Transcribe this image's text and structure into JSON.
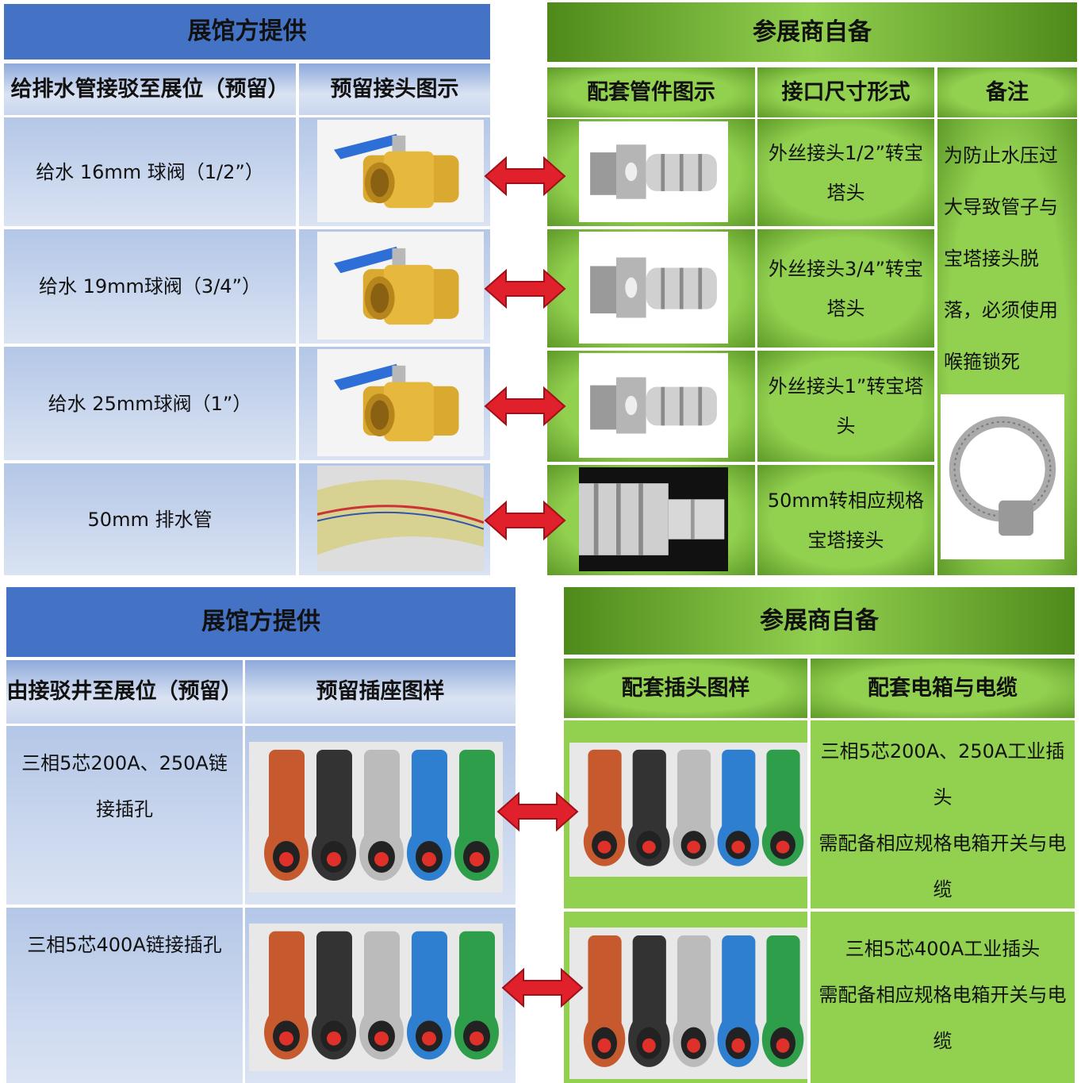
{
  "water": {
    "left_header": "展馆方提供",
    "left_columns": [
      "给排水管接驳至展位（预留）",
      "预留接头图示"
    ],
    "left_rows": [
      "给水  16mm 球阀（1/2”）",
      "给水  19mm球阀（3/4”）",
      "给水  25mm球阀（1”）",
      "50mm 排水管"
    ],
    "right_header": "参展商自备",
    "right_columns": [
      "配套管件图示",
      "接口尺寸形式",
      "备注"
    ],
    "right_rows": [
      "外丝接头1/2”转宝塔头",
      "外丝接头3/4”转宝塔头",
      "外丝接头1”转宝塔头",
      "50mm转相应规格宝塔接头"
    ],
    "note": "为防止水压过大导致管子与宝塔接头脱落，必须使用喉箍锁死"
  },
  "power": {
    "left_header": "展馆方提供",
    "left_columns": [
      "由接驳井至展位（预留）",
      "预留插座图样"
    ],
    "left_rows": [
      "三相5芯200A、250A链接插孔",
      "三相5芯400A链接插孔"
    ],
    "right_header": "参展商自备",
    "right_columns": [
      "配套插头图样",
      "配套电箱与电缆"
    ],
    "right_rows": [
      [
        "三相5芯200A、250A工业插头",
        "需配备相应规格电箱开关与电缆"
      ],
      [
        "三相5芯400A工业插头",
        "需配备相应规格电箱开关与电缆"
      ]
    ]
  }
}
